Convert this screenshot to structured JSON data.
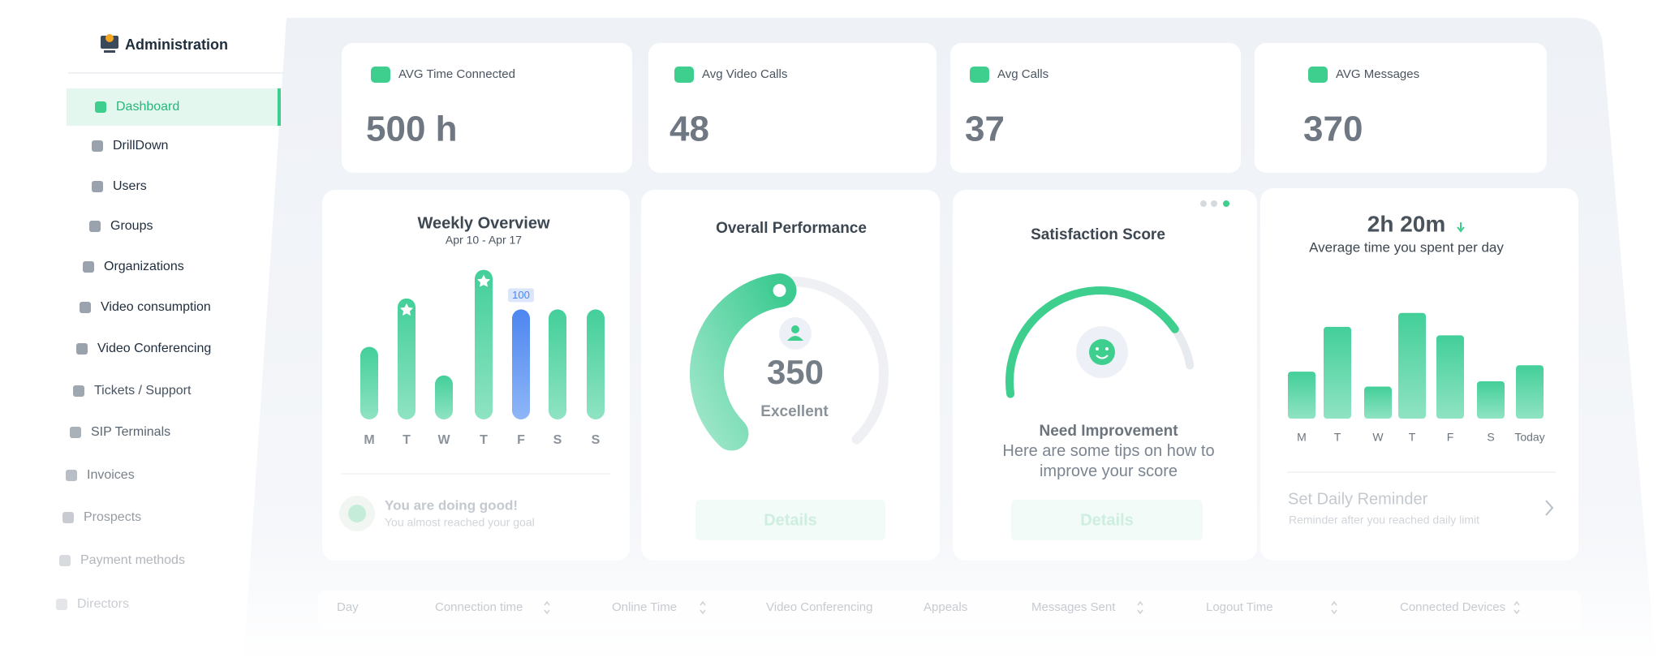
{
  "sidebar": {
    "title": "Administration",
    "items": [
      "Dashboard",
      "DrillDown",
      "Users",
      "Groups",
      "Organizations",
      "Video consumption",
      "Video Conferencing",
      "Tickets / Support",
      "SIP Terminals",
      "Invoices",
      "Prospects",
      "Payment methods",
      "Directors"
    ]
  },
  "stats": [
    {
      "label": "AVG Time Connected",
      "value": "500 h"
    },
    {
      "label": "Avg Video Calls",
      "value": 48
    },
    {
      "label": "Avg Calls",
      "value": 37
    },
    {
      "label": "AVG Messages",
      "value": 370
    }
  ],
  "weekly": {
    "title": "Weekly Overview",
    "subtitle": "Apr 10 - Apr 17",
    "days": [
      "M",
      "T",
      "W",
      "T",
      "F",
      "S",
      "S"
    ],
    "values": [
      66,
      110,
      40,
      136,
      100,
      100,
      100
    ],
    "footer_title": "You are doing good!",
    "footer_text": "You almost reached your goal"
  },
  "performance": {
    "title": "Overall Performance",
    "score": 350,
    "rating": "Excellent",
    "button": "Details"
  },
  "satisfaction": {
    "title": "Satisfaction Score",
    "status": "Need Improvement",
    "tips": "Here are some tips on how to improve your score",
    "button": "Details"
  },
  "time": {
    "value": "2h 20m",
    "subtitle": "Average time you spent per day",
    "days": [
      "M",
      "T",
      "W",
      "T",
      "F",
      "S",
      "Today"
    ],
    "values": [
      44,
      86,
      30,
      99,
      78,
      35,
      50
    ],
    "reminder_title": "Set Daily Reminder",
    "reminder_text": "Reminder after you reached daily limit"
  },
  "table": {
    "columns": [
      "Day",
      "Connection time",
      "Online Time",
      "Video Conferencing",
      "Appeals",
      "Messages Sent",
      "Logout Time",
      "Connected Devices"
    ]
  }
}
